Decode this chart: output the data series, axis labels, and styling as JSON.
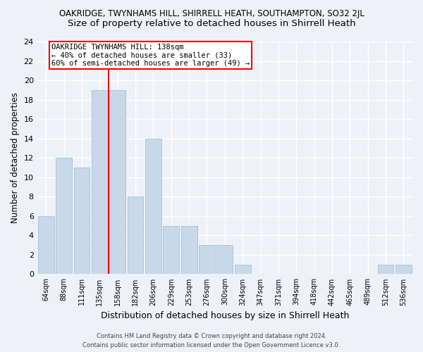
{
  "title1": "OAKRIDGE, TWYNHAMS HILL, SHIRRELL HEATH, SOUTHAMPTON, SO32 2JL",
  "title2": "Size of property relative to detached houses in Shirrell Heath",
  "xlabel": "Distribution of detached houses by size in Shirrell Heath",
  "ylabel": "Number of detached properties",
  "categories": [
    "64sqm",
    "88sqm",
    "111sqm",
    "135sqm",
    "158sqm",
    "182sqm",
    "206sqm",
    "229sqm",
    "253sqm",
    "276sqm",
    "300sqm",
    "324sqm",
    "347sqm",
    "371sqm",
    "394sqm",
    "418sqm",
    "442sqm",
    "465sqm",
    "489sqm",
    "512sqm",
    "536sqm"
  ],
  "values": [
    6,
    12,
    11,
    19,
    19,
    8,
    14,
    5,
    5,
    3,
    3,
    1,
    0,
    0,
    0,
    0,
    0,
    0,
    0,
    1,
    1
  ],
  "bar_color": "#c8d8e8",
  "bar_edge_color": "#a0b8d0",
  "vline_x": 3.5,
  "vline_color": "red",
  "annotation_title": "OAKRIDGE TWYNHAMS HILL: 138sqm",
  "annotation_line1": "← 40% of detached houses are smaller (33)",
  "annotation_line2": "60% of semi-detached houses are larger (49) →",
  "annotation_box_color": "white",
  "annotation_box_edge_color": "red",
  "ylim": [
    0,
    24
  ],
  "yticks": [
    0,
    2,
    4,
    6,
    8,
    10,
    12,
    14,
    16,
    18,
    20,
    22,
    24
  ],
  "footer1": "Contains HM Land Registry data © Crown copyright and database right 2024.",
  "footer2": "Contains public sector information licensed under the Open Government Licence v3.0.",
  "bg_color": "#eef2f7",
  "grid_color": "#ffffff",
  "title1_fontsize": 8.5,
  "title2_fontsize": 9.5,
  "xlabel_fontsize": 9,
  "ylabel_fontsize": 8.5,
  "annotation_fontsize": 7.5,
  "footer_fontsize": 6.0
}
